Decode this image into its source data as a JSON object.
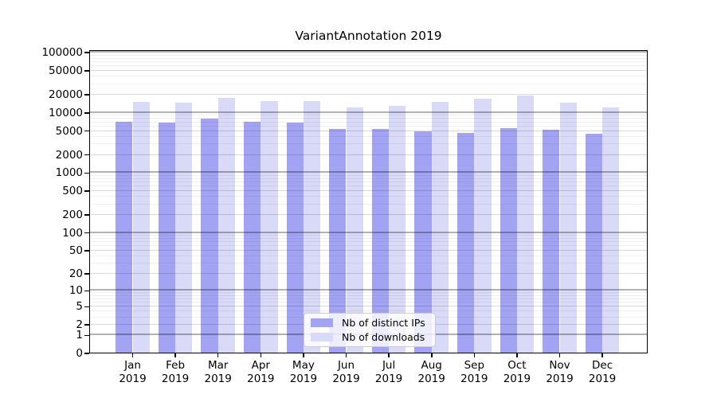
{
  "chart_data": {
    "type": "bar",
    "title": "VariantAnnotation 2019",
    "categories": [
      "Jan",
      "Feb",
      "Mar",
      "Apr",
      "May",
      "Jun",
      "Jul",
      "Aug",
      "Sep",
      "Oct",
      "Nov",
      "Dec"
    ],
    "x_year": "2019",
    "series": [
      {
        "name": "Nb of distinct IPs",
        "color": "#a3a3f3",
        "values": [
          7200,
          7000,
          8100,
          7200,
          6800,
          5400,
          5400,
          5000,
          4700,
          5600,
          5300,
          4500
        ]
      },
      {
        "name": "Nb of downloads",
        "color": "#d9d9f8",
        "values": [
          15200,
          14700,
          17600,
          15800,
          15700,
          12300,
          12900,
          15400,
          17200,
          19700,
          14900,
          12300
        ]
      }
    ],
    "y_ticks": [
      0,
      1,
      2,
      5,
      10,
      20,
      50,
      100,
      200,
      500,
      1000,
      2000,
      5000,
      10000,
      20000,
      50000,
      100000
    ],
    "y_scale": "log10(value+1)",
    "ylim": [
      0,
      100000
    ],
    "xlabel": "",
    "ylabel": "",
    "grid": "on",
    "legend_position": "lower-center"
  }
}
